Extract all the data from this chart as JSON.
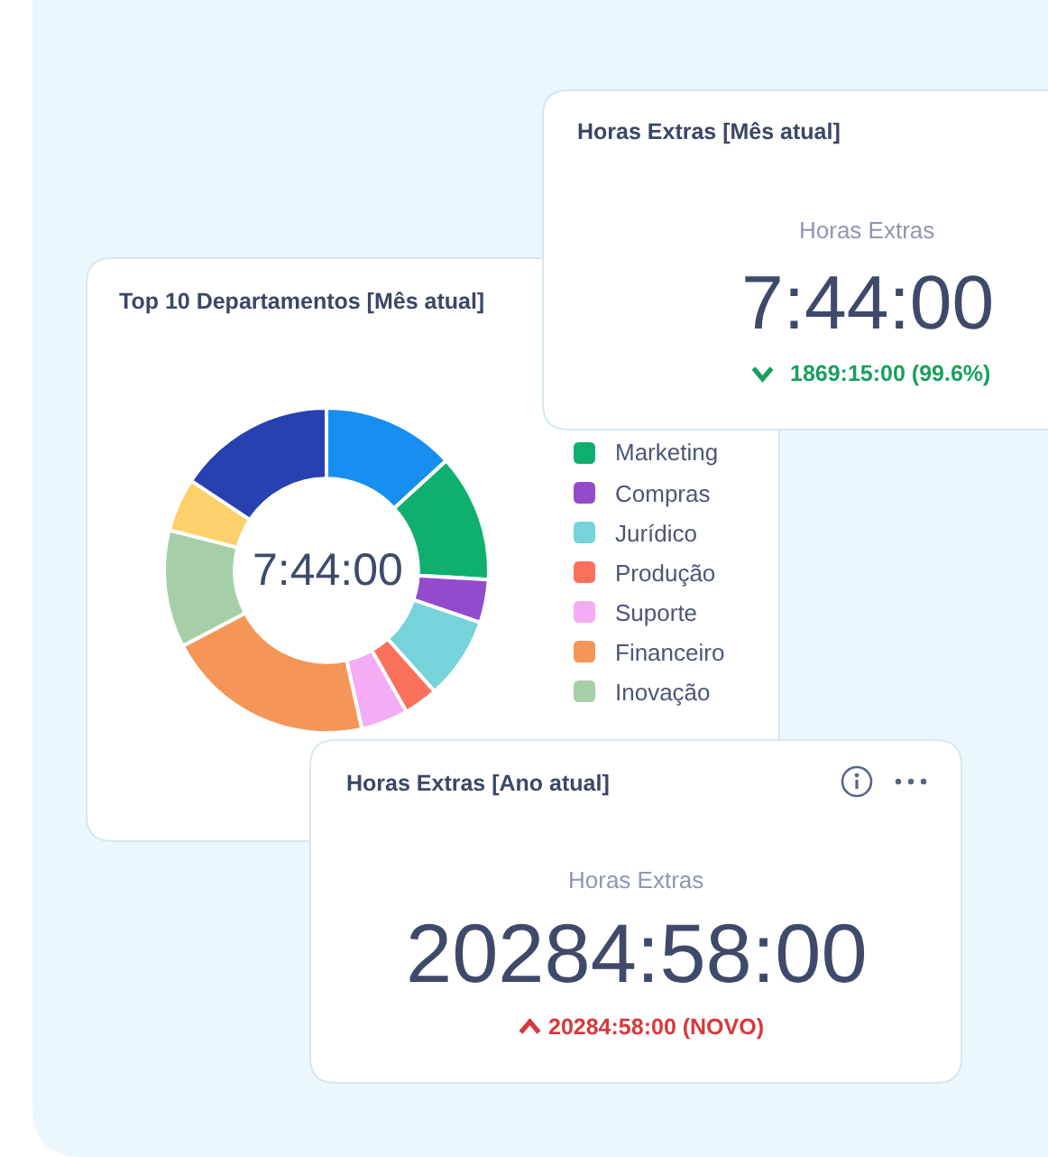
{
  "chart_data": [
    {
      "type": "other",
      "title": "Horas Extras [Mês atual]",
      "annotations": [
        "Horas Extras",
        "7:44:00",
        "1869:15:00 (99.6%)"
      ]
    },
    {
      "type": "donut",
      "title": "Top 10 Departamentos [Mês atual]",
      "categories": [
        null,
        "Marketing",
        "Compras",
        "Jurídico",
        "Produção",
        "Suporte",
        "Financeiro",
        "Inovação",
        null,
        null
      ],
      "values": [
        13.2,
        12.7,
        4.3,
        8.2,
        3.4,
        4.7,
        20.8,
        11.7,
        5.3,
        15.7
      ],
      "colors": [
        "#168ff0",
        "#0fb06e",
        "#934bce",
        "#76d3da",
        "#fb705b",
        "#f4acf4",
        "#f59557",
        "#a6cfa8",
        "#fed06b",
        "#2741b0"
      ],
      "annotations": [
        "7:44:00"
      ],
      "legend": "right"
    },
    {
      "type": "other",
      "title": "Horas Extras [Ano atual]",
      "annotations": [
        "Horas Extras",
        "20284:58:00",
        "20284:58:00 (NOVO)"
      ]
    }
  ]
}
